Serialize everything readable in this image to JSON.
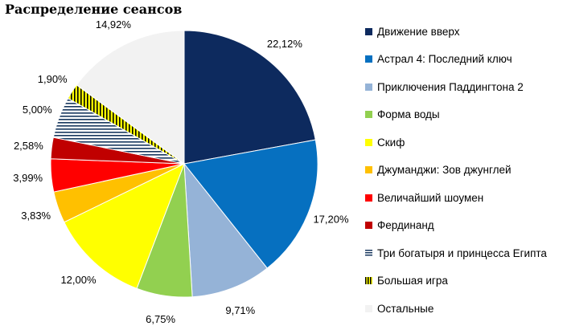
{
  "chart_data": {
    "type": "pie",
    "title": "Распределение сеансов",
    "legend_position": "right",
    "start_angle_deg": 0,
    "direction": "clockwise",
    "slices": [
      {
        "label": "Движение вверх",
        "value": 22.12,
        "value_label": "22,12%",
        "color": "#0d2a5e",
        "pattern": "solid"
      },
      {
        "label": "Астрал 4: Последний ключ",
        "value": 17.2,
        "value_label": "17,20%",
        "color": "#0670c0",
        "pattern": "solid"
      },
      {
        "label": "Приключения Паддингтона 2",
        "value": 9.71,
        "value_label": "9,71%",
        "color": "#95b3d7",
        "pattern": "solid"
      },
      {
        "label": "Форма воды",
        "value": 6.75,
        "value_label": "6,75%",
        "color": "#92d050",
        "pattern": "solid"
      },
      {
        "label": "Скиф",
        "value": 12.0,
        "value_label": "12,00%",
        "color": "#ffff00",
        "pattern": "solid"
      },
      {
        "label": "Джуманджи: Зов джунглей",
        "value": 3.83,
        "value_label": "3,83%",
        "color": "#ffc000",
        "pattern": "solid"
      },
      {
        "label": "Величайший шоумен",
        "value": 3.99,
        "value_label": "3,99%",
        "color": "#ff0000",
        "pattern": "solid"
      },
      {
        "label": "Фердинанд",
        "value": 2.58,
        "value_label": "2,58%",
        "color": "#c00000",
        "pattern": "solid"
      },
      {
        "label": "Три богатыря и принцесса Египта",
        "value": 5.0,
        "value_label": "5,00%",
        "color": "#17375e",
        "pattern": "hstripes"
      },
      {
        "label": "Большая игра",
        "value": 1.9,
        "value_label": "1,90%",
        "color": "#c9b800",
        "pattern": "vstripes"
      },
      {
        "label": "Остальные",
        "value": 14.92,
        "value_label": "14,92%",
        "color": "#f2f2f2",
        "pattern": "solid"
      }
    ]
  }
}
